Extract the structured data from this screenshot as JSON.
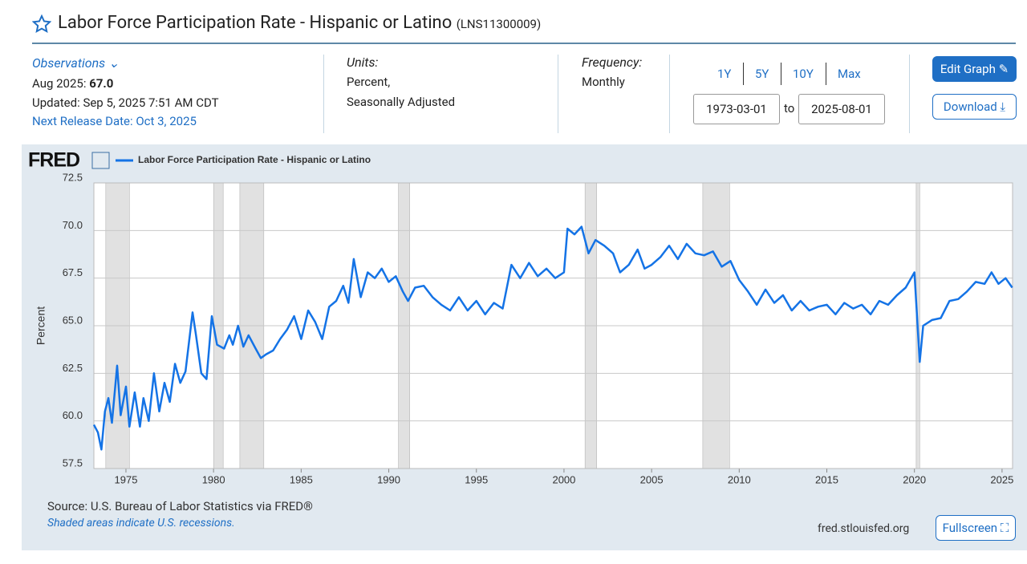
{
  "header": {
    "title": "Labor Force Participation Rate - Hispanic or Latino",
    "series_id": "(LNS11300009)"
  },
  "observations": {
    "label": "Observations",
    "latest_date": "Aug 2025:",
    "latest_value": "67.0",
    "updated": "Updated: Sep 5, 2025 7:51 AM CDT",
    "next_release": "Next Release Date: Oct 3, 2025"
  },
  "units": {
    "label": "Units:",
    "lines": [
      "Percent,",
      "Seasonally Adjusted"
    ]
  },
  "frequency": {
    "label": "Frequency:",
    "value": "Monthly"
  },
  "range": {
    "buttons": [
      "1Y",
      "5Y",
      "10Y",
      "Max"
    ],
    "start": "1973-03-01",
    "to": "to",
    "end": "2025-08-01"
  },
  "actions": {
    "edit": "Edit Graph",
    "download": "Download"
  },
  "logo": "FRED",
  "chart_data": {
    "type": "line",
    "y_label": "Percent",
    "xlim": [
      1973.17,
      2025.6
    ],
    "xticks": [
      1975,
      1980,
      1985,
      1990,
      1995,
      2000,
      2005,
      2010,
      2015,
      2020,
      2025
    ],
    "ylim": [
      57.5,
      72.5
    ],
    "yticks": [
      57.5,
      {
        "value": 60,
        "label": "60.0"
      },
      62.5,
      {
        "value": 65,
        "label": "65.0"
      },
      67.5,
      {
        "value": 70,
        "label": "70.0"
      },
      72.5
    ],
    "grid": true,
    "recessions": [
      [
        1973.85,
        1975.2
      ],
      [
        1980.0,
        1980.55
      ],
      [
        1981.5,
        1982.87
      ],
      [
        1990.55,
        1991.2
      ],
      [
        2001.2,
        2001.87
      ],
      [
        2007.92,
        2009.45
      ],
      [
        2020.1,
        2020.3
      ]
    ],
    "series": [
      {
        "name": "Labor Force Participation Rate - Hispanic or Latino",
        "color": "#1473e6",
        "x": [
          1973.17,
          1973.4,
          1973.6,
          1973.8,
          1974.0,
          1974.2,
          1974.5,
          1974.7,
          1975.0,
          1975.2,
          1975.5,
          1975.8,
          1976.0,
          1976.3,
          1976.6,
          1976.9,
          1977.2,
          1977.5,
          1977.8,
          1978.1,
          1978.4,
          1978.8,
          1979.0,
          1979.3,
          1979.6,
          1979.9,
          1980.2,
          1980.6,
          1980.9,
          1981.1,
          1981.4,
          1981.7,
          1982.0,
          1982.4,
          1982.7,
          1983.0,
          1983.4,
          1983.8,
          1984.2,
          1984.6,
          1985.0,
          1985.4,
          1985.8,
          1986.2,
          1986.6,
          1987.0,
          1987.4,
          1987.7,
          1988.0,
          1988.4,
          1988.8,
          1989.2,
          1989.6,
          1990.0,
          1990.4,
          1990.8,
          1991.1,
          1991.5,
          1992.0,
          1992.5,
          1993.0,
          1993.5,
          1994.0,
          1994.5,
          1995.0,
          1995.5,
          1996.0,
          1996.5,
          1997.0,
          1997.5,
          1998.0,
          1998.5,
          1999.0,
          1999.5,
          2000.0,
          2000.2,
          2000.6,
          2001.0,
          2001.4,
          2001.8,
          2002.3,
          2002.8,
          2003.2,
          2003.7,
          2004.2,
          2004.6,
          2005.0,
          2005.5,
          2006.0,
          2006.5,
          2007.0,
          2007.5,
          2008.0,
          2008.5,
          2009.0,
          2009.5,
          2010.0,
          2010.5,
          2011.0,
          2011.5,
          2012.0,
          2012.5,
          2013.0,
          2013.5,
          2014.0,
          2014.5,
          2015.0,
          2015.5,
          2016.0,
          2016.5,
          2017.0,
          2017.5,
          2018.0,
          2018.5,
          2019.0,
          2019.5,
          2020.0,
          2020.3,
          2020.5,
          2021.0,
          2021.5,
          2022.0,
          2022.5,
          2023.0,
          2023.5,
          2024.0,
          2024.4,
          2024.8,
          2025.2,
          2025.58
        ],
        "values": [
          59.8,
          59.4,
          58.5,
          60.5,
          61.2,
          59.9,
          62.9,
          60.3,
          61.8,
          59.7,
          61.5,
          59.7,
          61.2,
          60.0,
          62.5,
          60.5,
          62.0,
          61.0,
          63.0,
          62.0,
          62.6,
          65.7,
          64.5,
          62.5,
          62.2,
          65.5,
          64.0,
          63.8,
          64.5,
          64.0,
          65.0,
          63.9,
          64.5,
          63.8,
          63.3,
          63.5,
          63.7,
          64.3,
          64.8,
          65.5,
          64.3,
          65.8,
          65.2,
          64.3,
          66.0,
          66.3,
          67.1,
          66.2,
          68.5,
          66.5,
          67.8,
          67.5,
          68.0,
          67.3,
          67.6,
          66.8,
          66.3,
          67.0,
          67.1,
          66.5,
          66.1,
          65.8,
          66.5,
          65.8,
          66.3,
          65.6,
          66.2,
          65.9,
          68.2,
          67.5,
          68.3,
          67.6,
          68.0,
          67.5,
          67.8,
          70.1,
          69.8,
          70.2,
          68.8,
          69.5,
          69.2,
          68.8,
          67.8,
          68.2,
          69.0,
          68.0,
          68.2,
          68.6,
          69.2,
          68.5,
          69.3,
          68.8,
          68.7,
          68.9,
          68.1,
          68.4,
          67.4,
          66.8,
          66.1,
          66.9,
          66.2,
          66.6,
          65.8,
          66.3,
          65.8,
          66.0,
          66.1,
          65.6,
          66.2,
          65.9,
          66.1,
          65.6,
          66.3,
          66.1,
          66.6,
          67.0,
          67.8,
          63.1,
          65.0,
          65.3,
          65.4,
          66.3,
          66.4,
          66.8,
          67.3,
          67.2,
          67.8,
          67.2,
          67.5,
          67.0
        ]
      }
    ]
  },
  "footer": {
    "source": "Source: U.S. Bureau of Labor Statistics via FRED®",
    "note": "Shaded areas indicate U.S. recessions.",
    "url": "fred.stlouisfed.org",
    "fullscreen": "Fullscreen"
  }
}
